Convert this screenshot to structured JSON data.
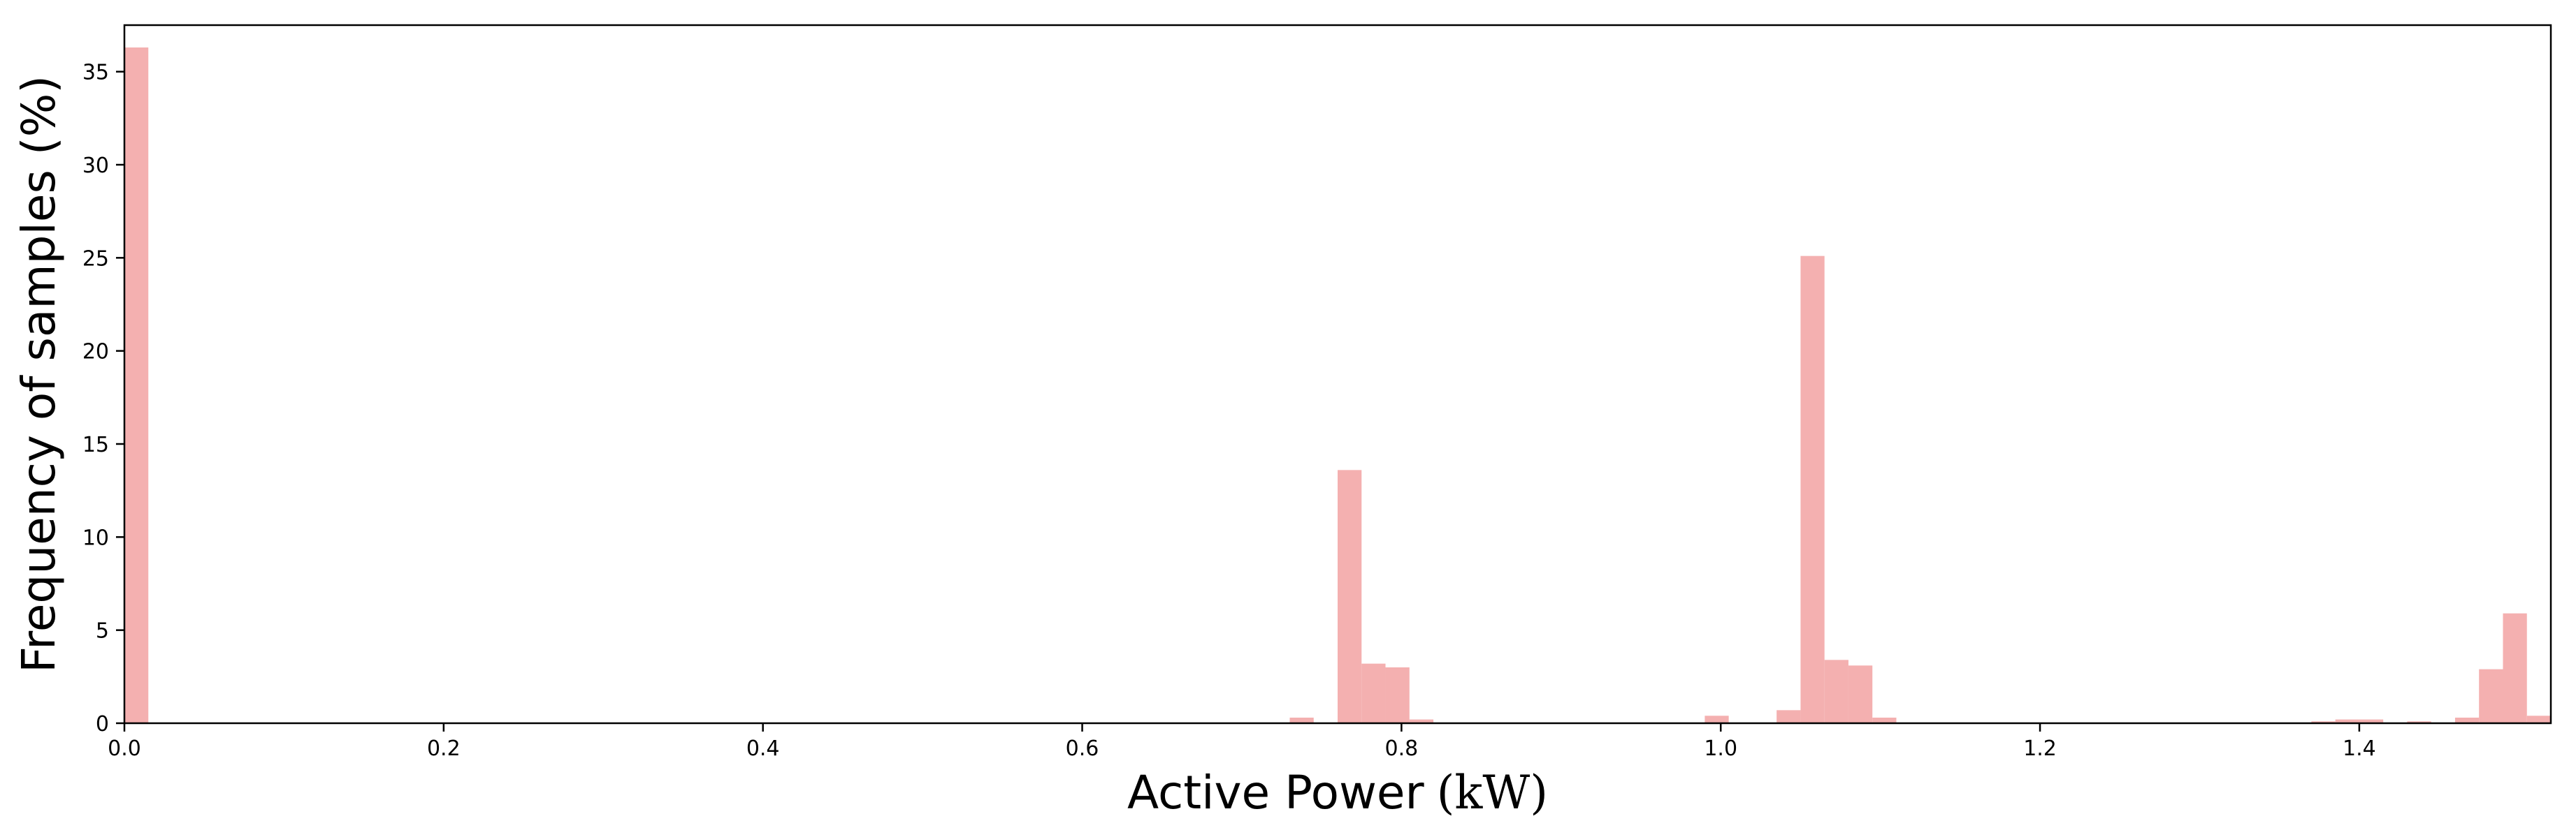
{
  "chart_data": {
    "type": "bar",
    "title": "",
    "xlabel": "Active Power",
    "xlabel_unit": "(kW)",
    "ylabel": "Frequency of samples (%)",
    "xlim": [
      0.0,
      1.52
    ],
    "ylim": [
      0,
      37.5
    ],
    "bin_width": 0.015,
    "bar_color": "#f4b0b0",
    "grid": false,
    "x_ticks": [
      "0.0",
      "0.2",
      "0.4",
      "0.6",
      "0.8",
      "1.0",
      "1.2",
      "1.4"
    ],
    "y_ticks": [
      "0",
      "5",
      "10",
      "15",
      "20",
      "25",
      "30",
      "35"
    ],
    "bins": [
      {
        "x": 0.0,
        "value": 36.3
      },
      {
        "x": 0.73,
        "value": 0.3
      },
      {
        "x": 0.76,
        "value": 13.6
      },
      {
        "x": 0.775,
        "value": 3.2
      },
      {
        "x": 0.79,
        "value": 3.0
      },
      {
        "x": 0.805,
        "value": 0.2
      },
      {
        "x": 0.99,
        "value": 0.4
      },
      {
        "x": 1.035,
        "value": 0.7
      },
      {
        "x": 1.05,
        "value": 25.1
      },
      {
        "x": 1.065,
        "value": 3.4
      },
      {
        "x": 1.08,
        "value": 3.1
      },
      {
        "x": 1.095,
        "value": 0.3
      },
      {
        "x": 1.37,
        "value": 0.1
      },
      {
        "x": 1.385,
        "value": 0.2
      },
      {
        "x": 1.4,
        "value": 0.2
      },
      {
        "x": 1.43,
        "value": 0.1
      },
      {
        "x": 1.46,
        "value": 0.3
      },
      {
        "x": 1.475,
        "value": 2.9
      },
      {
        "x": 1.49,
        "value": 5.9
      },
      {
        "x": 1.505,
        "value": 0.4
      }
    ]
  }
}
